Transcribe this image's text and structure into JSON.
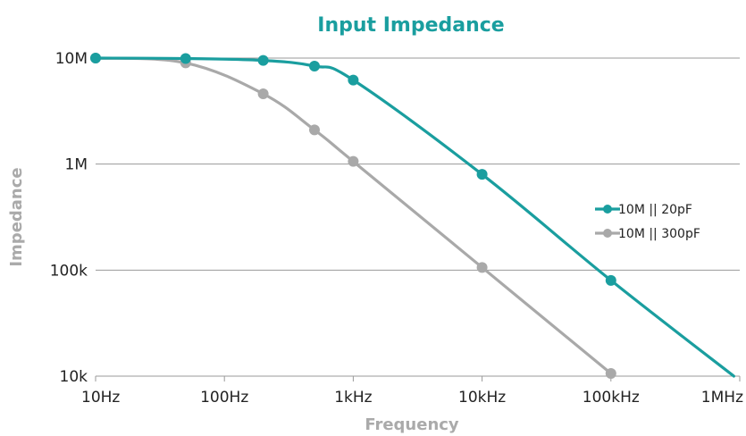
{
  "chart_data": {
    "type": "line",
    "title": "Input Impedance",
    "xlabel": "Frequency",
    "ylabel": "Impedance",
    "x_scale": "log",
    "y_scale": "log",
    "xlim": [
      10,
      1000000
    ],
    "ylim": [
      10000,
      10000000
    ],
    "x_ticks": [
      {
        "value": 10,
        "label": "10Hz"
      },
      {
        "value": 100,
        "label": "100Hz"
      },
      {
        "value": 1000,
        "label": "1kHz"
      },
      {
        "value": 10000,
        "label": "10kHz"
      },
      {
        "value": 100000,
        "label": "100kHz"
      },
      {
        "value": 1000000,
        "label": "1MHz"
      }
    ],
    "y_ticks": [
      {
        "value": 10000,
        "label": "10k"
      },
      {
        "value": 100000,
        "label": "100k"
      },
      {
        "value": 1000000,
        "label": "1M"
      },
      {
        "value": 10000000,
        "label": "10M"
      }
    ],
    "grid": "horizontal",
    "legend_position": "right",
    "series": [
      {
        "name": "10M || 20pF",
        "color": "#1a9e9f",
        "points": [
          {
            "x": 10,
            "y": 10000000
          },
          {
            "x": 50,
            "y": 9900000
          },
          {
            "x": 200,
            "y": 9500000
          },
          {
            "x": 500,
            "y": 8400000
          },
          {
            "x": 1000,
            "y": 6200000
          },
          {
            "x": 10000,
            "y": 800000
          },
          {
            "x": 100000,
            "y": 80000
          }
        ],
        "curve_end": {
          "x": 900000,
          "y": 10000
        }
      },
      {
        "name": "10M || 300pF",
        "color": "#a9a9a9",
        "points": [
          {
            "x": 10,
            "y": 10000000
          },
          {
            "x": 50,
            "y": 9000000
          },
          {
            "x": 200,
            "y": 4600000
          },
          {
            "x": 500,
            "y": 2100000
          },
          {
            "x": 1000,
            "y": 1060000
          },
          {
            "x": 10000,
            "y": 106000
          },
          {
            "x": 100000,
            "y": 10600
          }
        ]
      }
    ]
  }
}
